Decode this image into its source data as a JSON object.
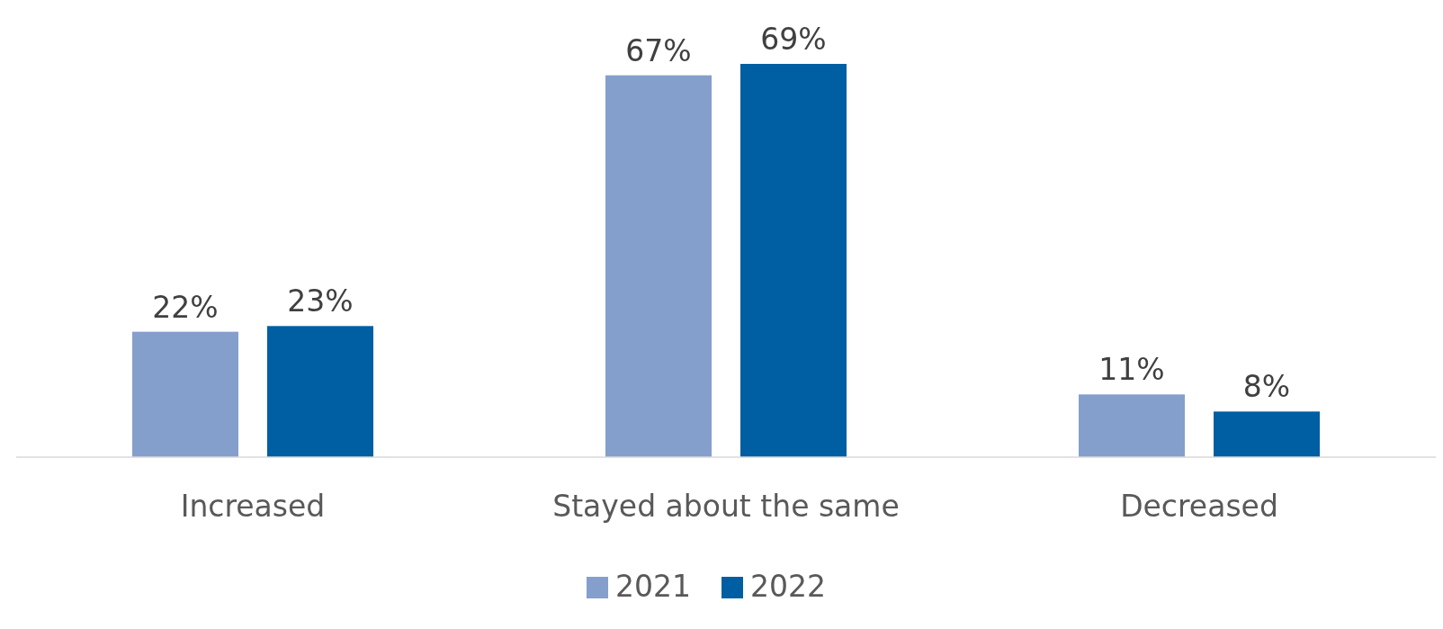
{
  "chart_data": {
    "type": "bar",
    "categories": [
      "Increased",
      "Stayed about the same",
      "Decreased"
    ],
    "legend": "bottom",
    "series": [
      {
        "name": "2021",
        "color": "#849fcb",
        "values": [
          22,
          67,
          11
        ],
        "value_labels": [
          "22%",
          "67%",
          "11%"
        ]
      },
      {
        "name": "2022",
        "color": "#005ea2",
        "values": [
          23,
          69,
          8
        ],
        "value_labels": [
          "23%",
          "69%",
          "8%"
        ]
      }
    ]
  }
}
